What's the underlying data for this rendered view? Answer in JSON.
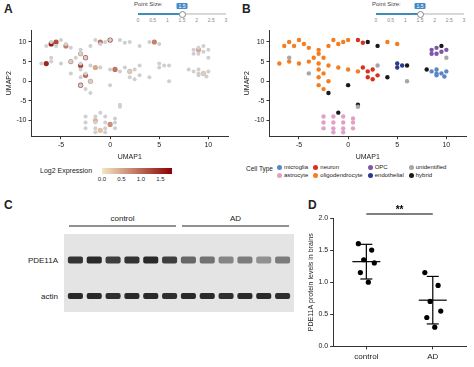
{
  "chart_data": [
    {
      "panel": "A",
      "type": "scatter",
      "slider": {
        "label": "Point Size:",
        "min": 0,
        "max": 3,
        "value": 1.5,
        "ticks": [
          0,
          0.5,
          1,
          1.5,
          2,
          2.5,
          3
        ]
      },
      "xlabel": "UMAP1",
      "ylabel": "UMAP2",
      "xlim": [
        -8,
        12
      ],
      "xticks": [
        -5,
        0,
        5,
        10
      ],
      "ylim": [
        -14,
        13
      ],
      "yticks": [
        -10,
        -5,
        0,
        5,
        10
      ],
      "grid": false,
      "color": "#cfcfcf",
      "marker": "circle",
      "background_points": [
        [
          8.5,
          2.5
        ],
        [
          9,
          3
        ],
        [
          9.5,
          2
        ],
        [
          9,
          1.5
        ],
        [
          10,
          2.5
        ],
        [
          9,
          2
        ],
        [
          9.8,
          1.2
        ],
        [
          1.5,
          3.5
        ],
        [
          2,
          2.5
        ],
        [
          2.5,
          3
        ],
        [
          3,
          1.5
        ],
        [
          2,
          1
        ],
        [
          2.5,
          0.5
        ],
        [
          1,
          10.5
        ],
        [
          1.5,
          9.8
        ],
        [
          8.5,
          8
        ],
        [
          9,
          8.5
        ],
        [
          9.5,
          7.5
        ],
        [
          10,
          8
        ],
        [
          9,
          7
        ],
        [
          8.5,
          7
        ],
        [
          1,
          -6.5
        ],
        [
          -6,
          6
        ],
        [
          3,
          4
        ],
        [
          6,
          0
        ],
        [
          -4,
          2
        ],
        [
          10,
          6
        ],
        [
          -2.5,
          -9
        ],
        [
          -1.5,
          -9
        ],
        [
          -0.5,
          -9
        ],
        [
          0.5,
          -9.5
        ],
        [
          -2.5,
          -10.5
        ],
        [
          -1.5,
          -10.5
        ],
        [
          -0.5,
          -10.5
        ],
        [
          0.5,
          -10.5
        ],
        [
          -2.5,
          -12
        ],
        [
          -1.5,
          -12
        ],
        [
          -0.5,
          -12
        ],
        [
          0.5,
          -12
        ],
        [
          -1.5,
          -13
        ],
        [
          -0.5,
          -13
        ],
        [
          -6,
          10
        ],
        [
          -5,
          10.5
        ],
        [
          -4.5,
          9.5
        ],
        [
          -5.5,
          9
        ],
        [
          -6.5,
          9
        ],
        [
          -4,
          8.5
        ],
        [
          -1.5,
          10.5
        ],
        [
          -0.5,
          10
        ],
        [
          -1,
          9.5
        ],
        [
          0,
          10.5
        ],
        [
          -2,
          9
        ],
        [
          -3,
          8
        ],
        [
          -3,
          7
        ],
        [
          -2.5,
          6
        ],
        [
          -3.5,
          6
        ],
        [
          -6,
          5
        ],
        [
          -7,
          4.5
        ],
        [
          -5,
          4.5
        ],
        [
          -4,
          5
        ],
        [
          -3,
          4.5
        ],
        [
          -2,
          4
        ],
        [
          -1,
          3.5
        ],
        [
          0,
          3
        ],
        [
          1,
          2.5
        ],
        [
          -3,
          3
        ],
        [
          -2.5,
          2
        ],
        [
          -3,
          1
        ],
        [
          -2,
          0
        ],
        [
          -3,
          -1
        ],
        [
          -2.5,
          -2
        ],
        [
          4,
          10
        ],
        [
          5,
          9.5
        ],
        [
          5,
          4.5
        ],
        [
          5.5,
          4
        ],
        [
          5,
          3.5
        ],
        [
          2,
          10
        ],
        [
          3,
          9
        ],
        [
          6,
          4
        ],
        [
          4,
          1
        ],
        [
          0,
          -1
        ],
        [
          -2,
          -3
        ],
        [
          9.5,
          9
        ],
        [
          8,
          3
        ],
        [
          -1,
          -8
        ],
        [
          1,
          -6
        ]
      ],
      "points": [
        [
          -5.5,
          10,
          1.2
        ],
        [
          -4.5,
          9,
          0.8
        ],
        [
          -6,
          9.5,
          1.6
        ],
        [
          -1,
          10,
          0.9
        ],
        [
          0,
          10.5,
          1.4
        ],
        [
          -3,
          7,
          0.6
        ],
        [
          -2.5,
          6,
          1.1
        ],
        [
          -6.5,
          4.5,
          1.5
        ],
        [
          -4,
          5,
          0.7
        ],
        [
          -3,
          4,
          1.3
        ],
        [
          -1.5,
          3.5,
          0.5
        ],
        [
          0.5,
          3,
          0.9
        ],
        [
          -2.5,
          1.5,
          1.0
        ],
        [
          -2,
          0,
          0.6
        ],
        [
          -3,
          -1,
          1.2
        ],
        [
          2,
          2.5,
          0.4
        ],
        [
          4.5,
          10,
          0.8
        ],
        [
          9,
          8,
          0.5
        ],
        [
          9.5,
          2,
          0.3
        ],
        [
          -1.5,
          -10,
          0.4
        ],
        [
          0,
          -11,
          0.7
        ],
        [
          -1,
          -12.5,
          0.3
        ]
      ],
      "colorbar": {
        "title": "Log2 Expression",
        "range": [
          0,
          1.8
        ],
        "colors": [
          "#f3e7c4",
          "#8b0000"
        ],
        "ticks": [
          {
            "value": 0,
            "label": "0.0"
          },
          {
            "value": 0.5,
            "label": "0.5"
          },
          {
            "value": 1,
            "label": "1.0"
          },
          {
            "value": 1.5,
            "label": "1.5"
          }
        ]
      }
    },
    {
      "panel": "B",
      "type": "scatter",
      "slider": {
        "label": "Point Size:",
        "min": 0,
        "max": 3,
        "value": 1.5,
        "ticks": [
          0,
          0.5,
          1,
          1.5,
          2,
          2.5,
          3
        ]
      },
      "xlabel": "UMAP1",
      "ylabel": "UMAP2",
      "xlim": [
        -8,
        12
      ],
      "xticks": [
        -5,
        0,
        5,
        10
      ],
      "ylim": [
        -14,
        13
      ],
      "yticks": [
        -10,
        -5,
        0,
        5,
        10
      ],
      "grid": false,
      "marker": "circle",
      "legend": "bottom",
      "legend_title": "Cell Type",
      "series": [
        {
          "name": "microglia",
          "color": "#5b86c5",
          "points": [
            [
              8.5,
              2.5
            ],
            [
              9,
              3
            ],
            [
              9.5,
              2
            ],
            [
              9,
              1.5
            ],
            [
              10,
              2.5
            ],
            [
              9,
              2
            ],
            [
              9.8,
              1.2
            ]
          ]
        },
        {
          "name": "neuron",
          "color": "#d7301f",
          "points": [
            [
              1.5,
              3.5
            ],
            [
              2,
              2.5
            ],
            [
              2.5,
              3
            ],
            [
              3,
              1.5
            ],
            [
              2,
              1
            ],
            [
              2.5,
              0.5
            ],
            [
              1,
              10.5
            ],
            [
              1.5,
              9.8
            ]
          ]
        },
        {
          "name": "OPC",
          "color": "#7e57a6",
          "points": [
            [
              8.5,
              8
            ],
            [
              9,
              8.5
            ],
            [
              9.5,
              7.5
            ],
            [
              10,
              8
            ],
            [
              9,
              7
            ],
            [
              8.5,
              7
            ]
          ]
        },
        {
          "name": "unidentified",
          "color": "#a6a6a6",
          "points": [
            [
              1,
              -6.5
            ],
            [
              -6,
              6
            ],
            [
              3,
              4
            ],
            [
              6,
              0
            ],
            [
              -4,
              2
            ],
            [
              10,
              6
            ]
          ]
        },
        {
          "name": "astrocyte",
          "color": "#e2a0c8",
          "points": [
            [
              -2.5,
              -9
            ],
            [
              -1.5,
              -9
            ],
            [
              -0.5,
              -9
            ],
            [
              0.5,
              -9.5
            ],
            [
              -2.5,
              -10.5
            ],
            [
              -1.5,
              -10.5
            ],
            [
              -0.5,
              -10.5
            ],
            [
              0.5,
              -10.5
            ],
            [
              -2.5,
              -12
            ],
            [
              -1.5,
              -12
            ],
            [
              -0.5,
              -12
            ],
            [
              0.5,
              -12
            ],
            [
              -1.5,
              -13
            ],
            [
              -0.5,
              -13
            ]
          ]
        },
        {
          "name": "oligodendrocyte",
          "color": "#f47d20",
          "points": [
            [
              -6,
              10
            ],
            [
              -5,
              10.5
            ],
            [
              -4.5,
              9.5
            ],
            [
              -5.5,
              9
            ],
            [
              -6.5,
              9
            ],
            [
              -4,
              8.5
            ],
            [
              -1.5,
              10.5
            ],
            [
              -0.5,
              10
            ],
            [
              -1,
              9.5
            ],
            [
              0,
              10.5
            ],
            [
              -2,
              9
            ],
            [
              -3,
              8
            ],
            [
              -3,
              7
            ],
            [
              -2.5,
              6
            ],
            [
              -3.5,
              6
            ],
            [
              -6,
              5
            ],
            [
              -7,
              4.5
            ],
            [
              -5,
              4.5
            ],
            [
              -4,
              5
            ],
            [
              -3,
              4.5
            ],
            [
              -2,
              4
            ],
            [
              -1,
              3.5
            ],
            [
              0,
              3
            ],
            [
              1,
              2.5
            ],
            [
              -3,
              3
            ],
            [
              -2.5,
              2
            ],
            [
              -3,
              1
            ],
            [
              -2,
              0
            ],
            [
              -3,
              -1
            ],
            [
              -2.5,
              -2
            ],
            [
              4,
              10
            ],
            [
              5,
              9.5
            ]
          ]
        },
        {
          "name": "endothelial",
          "color": "#2b3a8c",
          "points": [
            [
              5,
              4.5
            ],
            [
              5.5,
              4
            ],
            [
              5,
              3.5
            ]
          ]
        },
        {
          "name": "hybrid",
          "color": "#1a1a1a",
          "points": [
            [
              2,
              10
            ],
            [
              3,
              9
            ],
            [
              6,
              4
            ],
            [
              4,
              1
            ],
            [
              0,
              -1
            ],
            [
              -2,
              -3
            ],
            [
              9.5,
              9
            ],
            [
              8,
              3
            ],
            [
              -1,
              -8
            ],
            [
              1,
              -6
            ]
          ]
        }
      ]
    },
    {
      "panel": "D",
      "type": "scatter",
      "categories": [
        "control",
        "AD"
      ],
      "values": [
        [
          1.6,
          1.5,
          1.35,
          1.3,
          1.15,
          1.0
        ],
        [
          1.15,
          0.95,
          0.7,
          0.55,
          0.45,
          0.3
        ]
      ],
      "mean": [
        1.32,
        0.72
      ],
      "error": [
        0.27,
        0.37
      ],
      "ylabel": "PDE11A protein levels in brains",
      "ylim": [
        0,
        2
      ],
      "yticks": [
        {
          "value": 0,
          "label": "0.0"
        },
        {
          "value": 0.5,
          "label": "0.5"
        },
        {
          "value": 1,
          "label": "1.0"
        },
        {
          "value": 1.5,
          "label": "1.5"
        },
        {
          "value": 2,
          "label": "2.0"
        }
      ],
      "grid": false,
      "color": "#000000",
      "marker": "circle",
      "annotations": [
        {
          "text": "**",
          "between": [
            "control",
            "AD"
          ]
        }
      ]
    }
  ],
  "blot": {
    "panel": "C",
    "groups": [
      {
        "label": "control",
        "lanes": 6
      },
      {
        "label": "AD",
        "lanes": 6
      }
    ],
    "rows": [
      {
        "label": "PDE11A",
        "intensity": [
          0.85,
          0.9,
          0.8,
          0.85,
          0.9,
          0.8,
          0.6,
          0.55,
          0.45,
          0.5,
          0.4,
          0.5
        ]
      },
      {
        "label": "actin",
        "intensity": [
          0.9,
          0.9,
          0.88,
          0.9,
          0.9,
          0.88,
          0.9,
          0.9,
          0.88,
          0.9,
          0.9,
          0.88
        ]
      }
    ]
  }
}
